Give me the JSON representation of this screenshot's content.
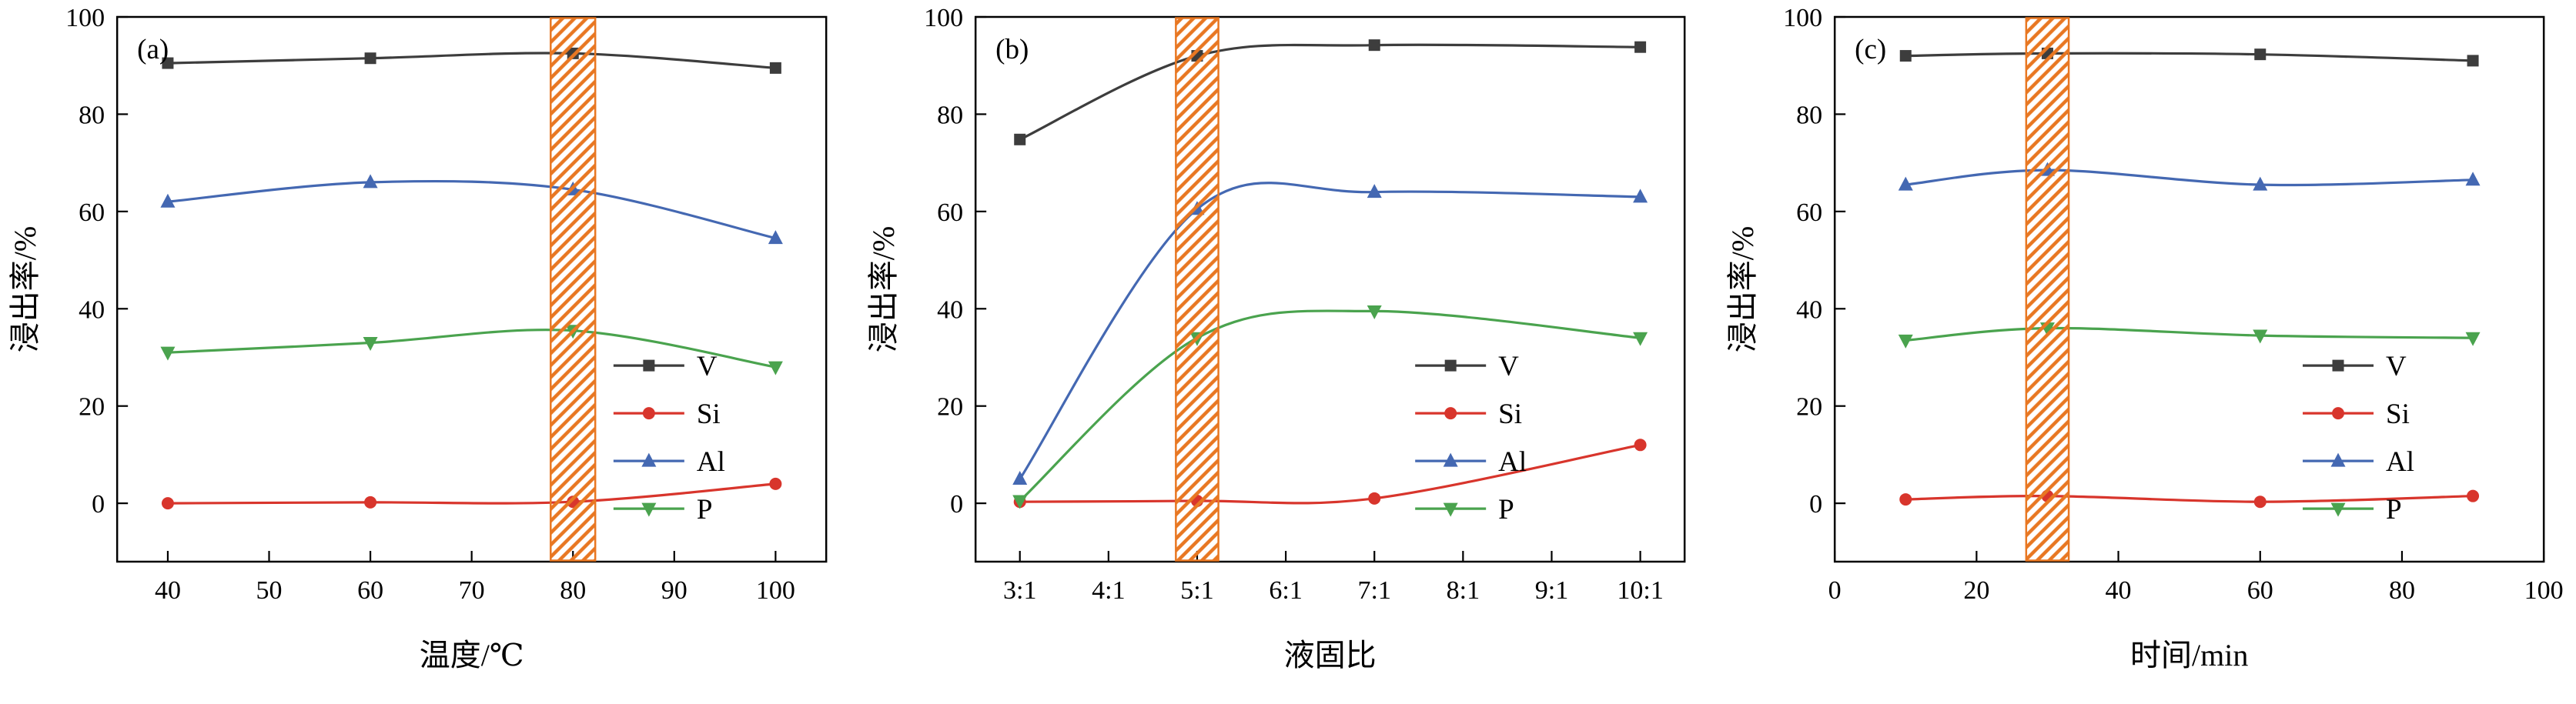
{
  "page": {
    "background": "#ffffff",
    "axis_color": "#000000",
    "text_color": "#000000"
  },
  "chart_data": [
    {
      "id": "a",
      "type": "line",
      "panel_label": "(a)",
      "xlabel": "温度/℃",
      "ylabel": "浸出率/%",
      "xlim": [
        35,
        105
      ],
      "ylim": [
        -12,
        100
      ],
      "x_tick_values": [
        40,
        50,
        60,
        70,
        80,
        90,
        100
      ],
      "x_tick_labels": [
        "40",
        "50",
        "60",
        "70",
        "80",
        "90",
        "100"
      ],
      "y_tick_values": [
        0,
        20,
        40,
        60,
        80,
        100
      ],
      "y_tick_labels": [
        "0",
        "20",
        "40",
        "60",
        "80",
        "100"
      ],
      "grid": false,
      "x": [
        40,
        60,
        80,
        100
      ],
      "series": [
        {
          "name": "V",
          "marker": "square",
          "color": "#3d3d3d",
          "values": [
            90.5,
            91.5,
            92.5,
            89.5
          ]
        },
        {
          "name": "Si",
          "marker": "circle",
          "color": "#d8352c",
          "values": [
            0,
            0.2,
            0.3,
            4
          ]
        },
        {
          "name": "Al",
          "marker": "triangle-up",
          "color": "#4468b2",
          "values": [
            62,
            66,
            64.5,
            54.5
          ]
        },
        {
          "name": "P",
          "marker": "triangle-down",
          "color": "#4aa34e",
          "values": [
            31,
            33,
            35.5,
            28
          ]
        }
      ],
      "highlight_band": {
        "from": 77.8,
        "to": 82.2,
        "color": "#e87722",
        "style": "diagonal-hatch"
      },
      "legend": {
        "entries": [
          "V",
          "Si",
          "Al",
          "P"
        ],
        "position": "center-right",
        "x": 0.7,
        "y": 0.64
      }
    },
    {
      "id": "b",
      "type": "line",
      "panel_label": "(b)",
      "xlabel": "液固比",
      "ylabel": "浸出率/%",
      "x_is_category": true,
      "xlim": [
        -0.5,
        7.5
      ],
      "ylim": [
        -12,
        100
      ],
      "x_tick_values": [
        0,
        1,
        2,
        3,
        4,
        5,
        6,
        7
      ],
      "x_tick_labels": [
        "3:1",
        "4:1",
        "5:1",
        "6:1",
        "7:1",
        "8:1",
        "9:1",
        "10:1"
      ],
      "y_tick_values": [
        0,
        20,
        40,
        60,
        80,
        100
      ],
      "y_tick_labels": [
        "0",
        "20",
        "40",
        "60",
        "80",
        "100"
      ],
      "grid": false,
      "x": [
        0,
        2,
        4,
        7
      ],
      "x_point_labels": [
        "3:1",
        "5:1",
        "7:1",
        "10:1"
      ],
      "series": [
        {
          "name": "V",
          "marker": "square",
          "color": "#3d3d3d",
          "values": [
            74.8,
            92,
            94.2,
            93.8
          ]
        },
        {
          "name": "Si",
          "marker": "circle",
          "color": "#d8352c",
          "values": [
            0.3,
            0.5,
            1,
            12
          ]
        },
        {
          "name": "Al",
          "marker": "triangle-up",
          "color": "#4468b2",
          "values": [
            5,
            60.5,
            64,
            63
          ]
        },
        {
          "name": "P",
          "marker": "triangle-down",
          "color": "#4aa34e",
          "values": [
            0.5,
            34,
            39.5,
            34
          ]
        }
      ],
      "highlight_band": {
        "from": 1.76,
        "to": 2.24,
        "color": "#e87722",
        "style": "diagonal-hatch"
      },
      "legend": {
        "entries": [
          "V",
          "Si",
          "Al",
          "P"
        ],
        "position": "center-right",
        "x": 0.62,
        "y": 0.64
      }
    },
    {
      "id": "c",
      "type": "line",
      "panel_label": "(c)",
      "xlabel": "时间/min",
      "ylabel": "浸出率/%",
      "xlim": [
        0,
        100
      ],
      "ylim": [
        -12,
        100
      ],
      "x_tick_values": [
        0,
        20,
        40,
        60,
        80,
        100
      ],
      "x_tick_labels": [
        "0",
        "20",
        "40",
        "60",
        "80",
        "100"
      ],
      "y_tick_values": [
        0,
        20,
        40,
        60,
        80,
        100
      ],
      "y_tick_labels": [
        "0",
        "20",
        "40",
        "60",
        "80",
        "100"
      ],
      "grid": false,
      "x": [
        10,
        30,
        60,
        90
      ],
      "series": [
        {
          "name": "V",
          "marker": "square",
          "color": "#3d3d3d",
          "values": [
            92,
            92.5,
            92.3,
            91
          ]
        },
        {
          "name": "Si",
          "marker": "circle",
          "color": "#d8352c",
          "values": [
            0.8,
            1.5,
            0.3,
            1.5
          ]
        },
        {
          "name": "Al",
          "marker": "triangle-up",
          "color": "#4468b2",
          "values": [
            65.5,
            68.5,
            65.5,
            66.5
          ]
        },
        {
          "name": "P",
          "marker": "triangle-down",
          "color": "#4aa34e",
          "values": [
            33.5,
            36,
            34.5,
            34
          ]
        }
      ],
      "highlight_band": {
        "from": 27,
        "to": 33,
        "color": "#e87722",
        "style": "diagonal-hatch"
      },
      "legend": {
        "entries": [
          "V",
          "Si",
          "Al",
          "P"
        ],
        "position": "center-right",
        "x": 0.66,
        "y": 0.64
      }
    }
  ]
}
